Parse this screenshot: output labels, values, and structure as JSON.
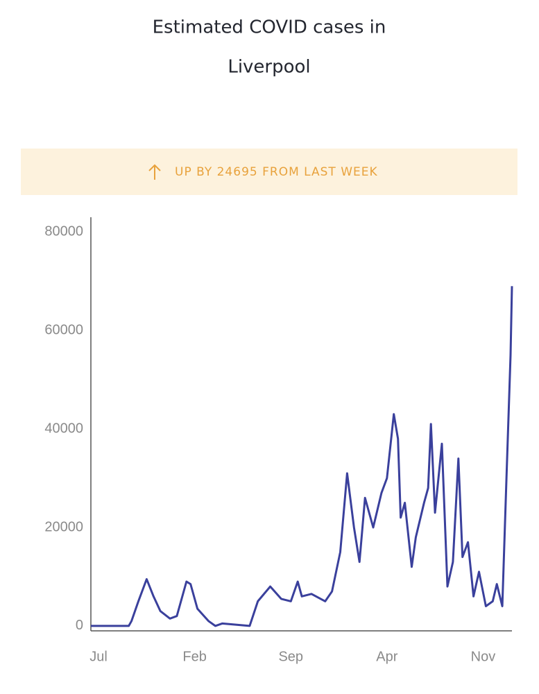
{
  "chart_data": {
    "type": "line",
    "title_lines": [
      "Estimated COVID cases in",
      "Liverpool"
    ],
    "banner": "UP BY 24695 FROM LAST WEEK",
    "color": "#3a409c",
    "x": [
      -0.56,
      0,
      1,
      2.2,
      2.4,
      2.9,
      3.5,
      4,
      4.5,
      5.2,
      5.7,
      6.4,
      6.7,
      7.2,
      8,
      8.5,
      9,
      11,
      11.6,
      12.5,
      13.3,
      14,
      14.5,
      14.8,
      15.5,
      16.5,
      17,
      17.6,
      18.1,
      18.6,
      19,
      19.4,
      20,
      20.6,
      21,
      21.5,
      21.8,
      22,
      22.3,
      22.8,
      23.1,
      23.7,
      24,
      24.2,
      24.5,
      25,
      25.4,
      25.8,
      26.2,
      26.5,
      26.9,
      27.3,
      27.7,
      28.2,
      28.7,
      29,
      29.4,
      29.7,
      30,
      30.1
    ],
    "values": [
      0,
      0,
      0,
      0,
      1000,
      5000,
      9500,
      6000,
      3000,
      1500,
      2000,
      9000,
      8500,
      3500,
      1000,
      0,
      500,
      0,
      5000,
      8000,
      5500,
      5000,
      9000,
      6000,
      6500,
      5000,
      7000,
      15000,
      31000,
      20000,
      13000,
      26000,
      20000,
      27000,
      30000,
      43000,
      38000,
      22000,
      25000,
      12000,
      18000,
      25000,
      28000,
      41000,
      23000,
      37000,
      8000,
      13000,
      34000,
      14000,
      17000,
      6000,
      11000,
      4000,
      5000,
      8500,
      4000,
      30000,
      55000,
      69000
    ],
    "xlim": [
      -0.56,
      30.1
    ],
    "xticks": [
      {
        "value": 0,
        "label": "Jul"
      },
      {
        "value": 7,
        "label": "Feb"
      },
      {
        "value": 14,
        "label": "Sep"
      },
      {
        "value": 21,
        "label": "Apr"
      },
      {
        "value": 28,
        "label": "Nov"
      }
    ],
    "ylim": [
      -1000,
      83000
    ],
    "yticks": [
      0,
      20000,
      40000,
      60000,
      80000
    ],
    "grid": false
  }
}
